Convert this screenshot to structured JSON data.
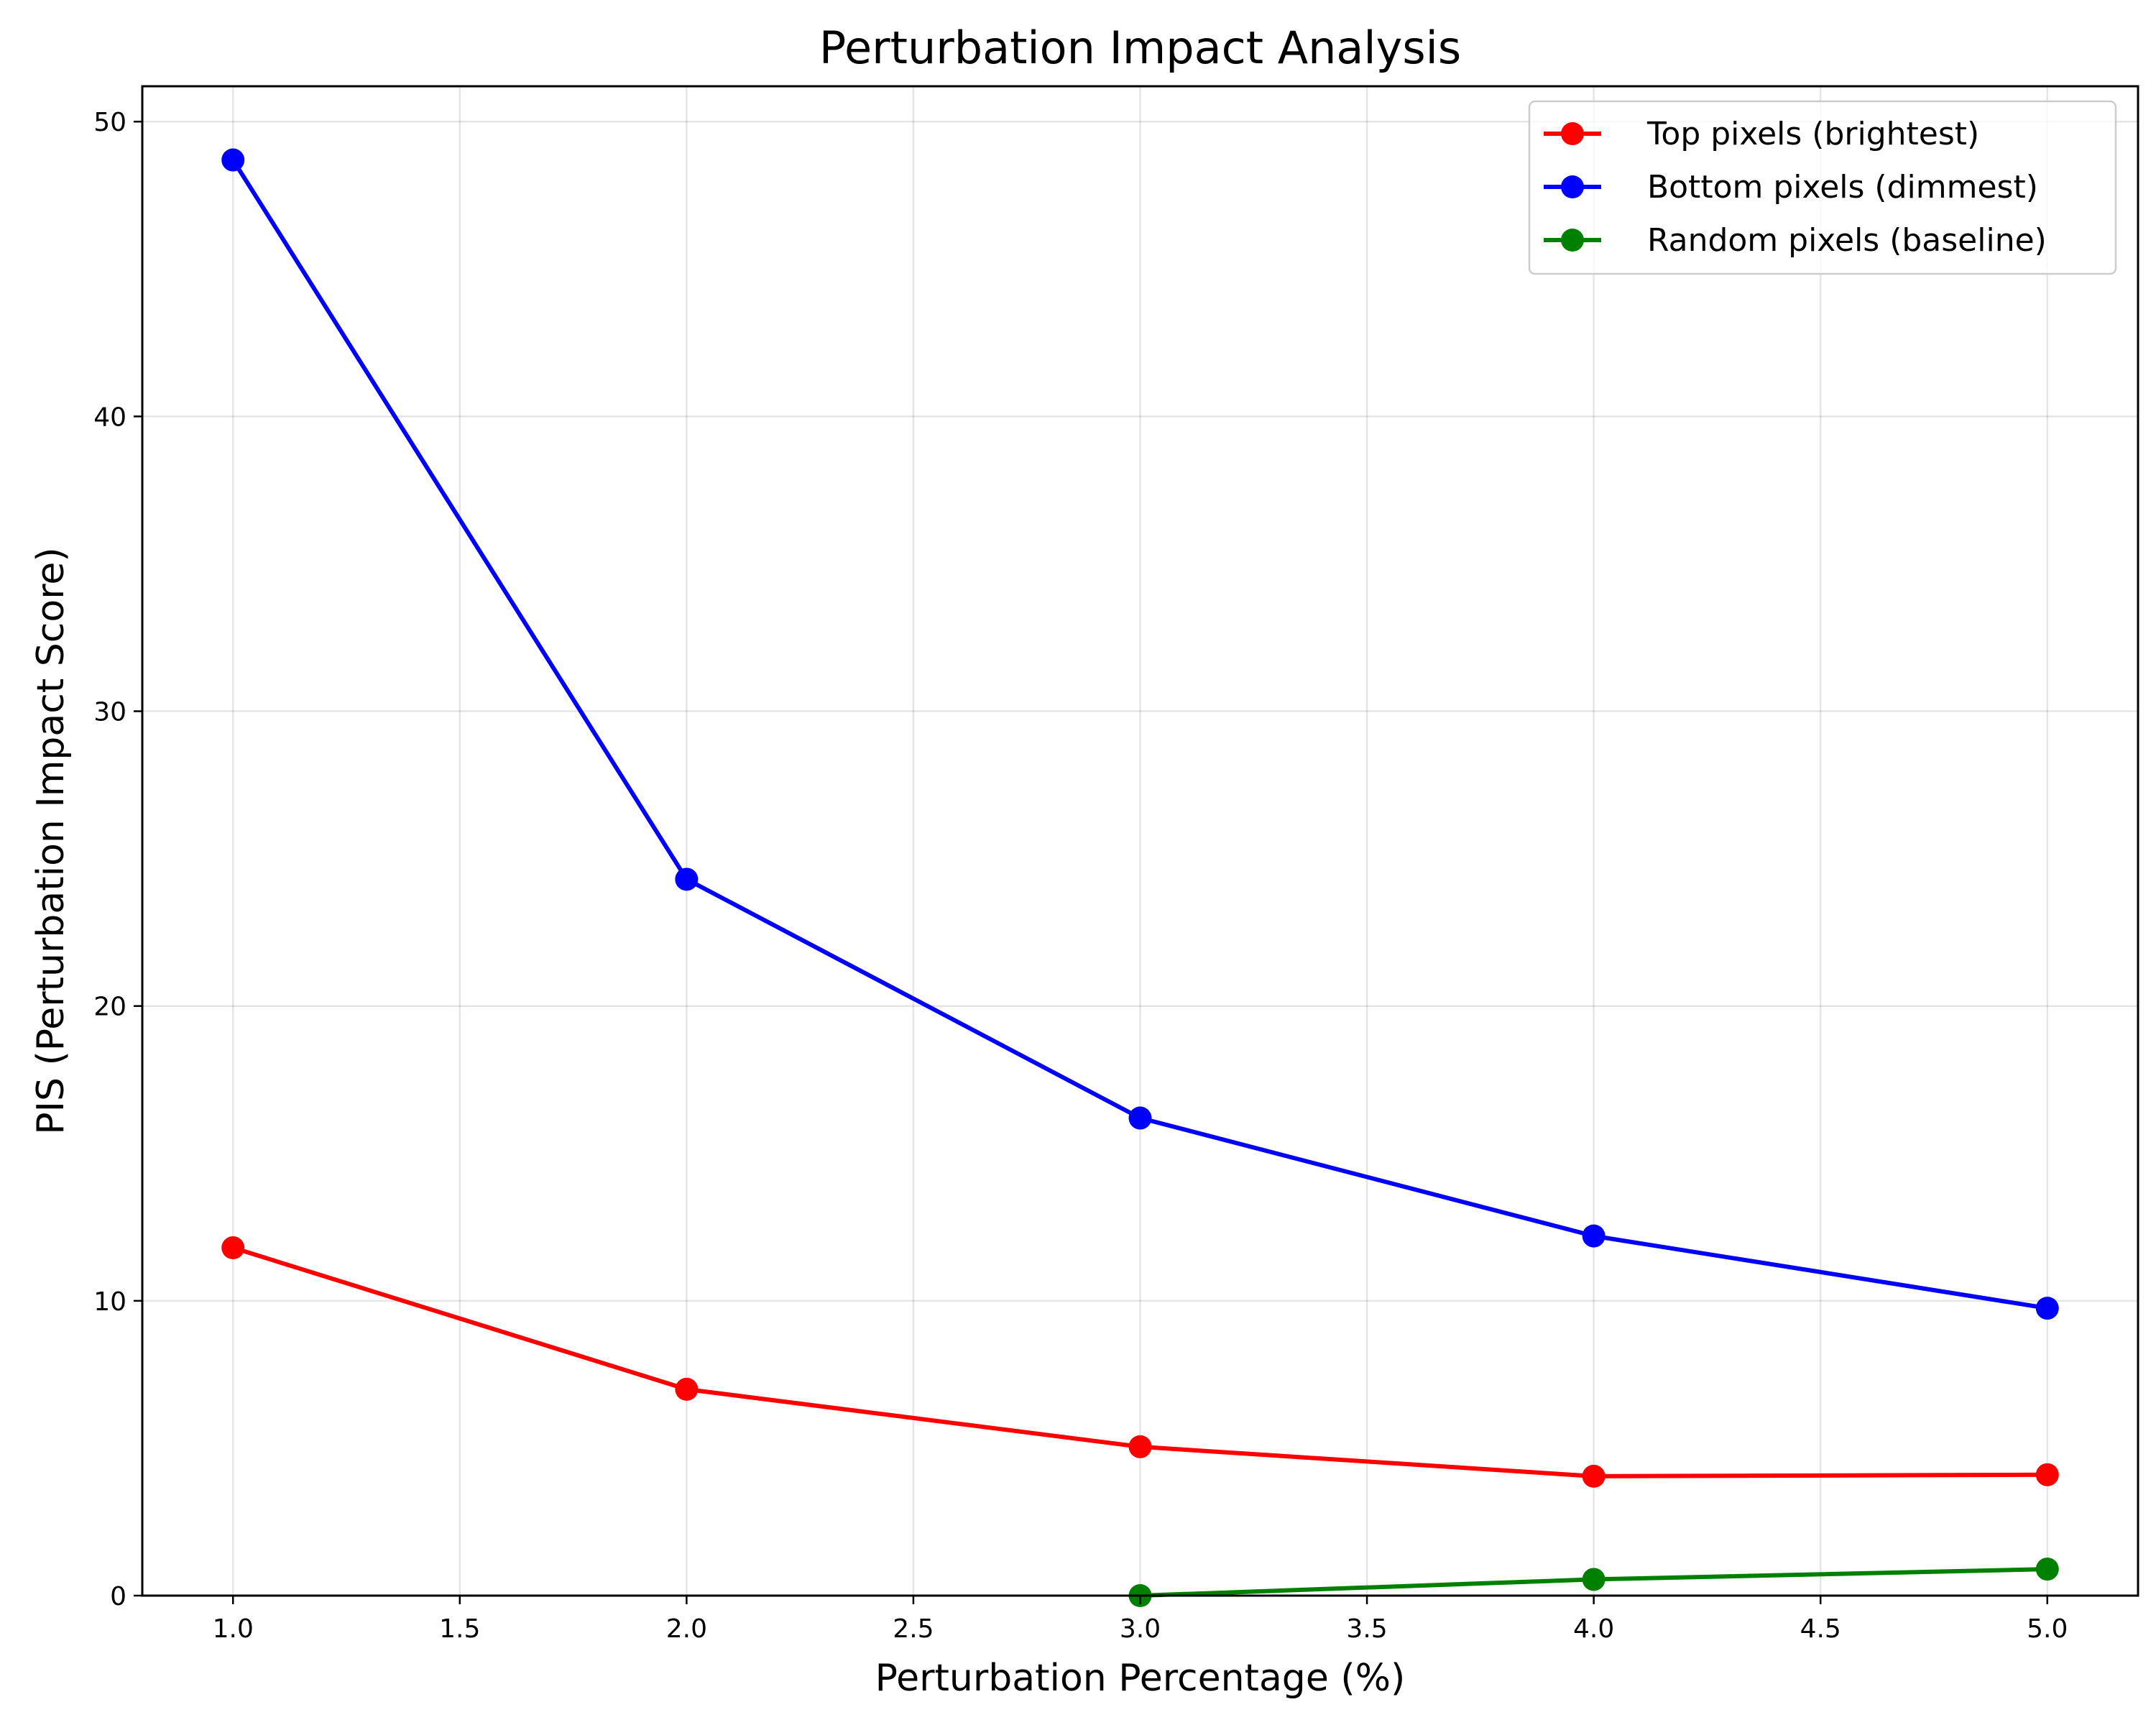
{
  "chart_data": {
    "type": "line",
    "title": "Perturbation Impact Analysis",
    "xlabel": "Perturbation Percentage (%)",
    "ylabel": "PIS (Perturbation Impact Score)",
    "xlim": [
      0.8,
      5.2
    ],
    "ylim": [
      0,
      51.2
    ],
    "xticks": [
      1.0,
      1.5,
      2.0,
      2.5,
      3.0,
      3.5,
      4.0,
      4.5,
      5.0
    ],
    "xtick_labels": [
      "1.0",
      "1.5",
      "2.0",
      "2.5",
      "3.0",
      "3.5",
      "4.0",
      "4.5",
      "5.0"
    ],
    "yticks": [
      0,
      10,
      20,
      30,
      40,
      50
    ],
    "ytick_labels": [
      "0",
      "10",
      "20",
      "30",
      "40",
      "50"
    ],
    "grid": true,
    "legend_position": "top-right",
    "series": [
      {
        "name": "Top pixels (brightest)",
        "color": "#ff0000",
        "x": [
          1.0,
          2.0,
          3.0,
          4.0,
          5.0
        ],
        "y": [
          11.8,
          7.0,
          5.05,
          4.05,
          4.1
        ]
      },
      {
        "name": "Bottom pixels (dimmest)",
        "color": "#0000ff",
        "x": [
          1.0,
          2.0,
          3.0,
          4.0,
          5.0
        ],
        "y": [
          48.7,
          24.3,
          16.2,
          12.2,
          9.75
        ]
      },
      {
        "name": "Random pixels (baseline)",
        "color": "#008000",
        "x": [
          3.0,
          4.0,
          5.0
        ],
        "y": [
          0.0,
          0.55,
          0.9
        ]
      }
    ]
  }
}
